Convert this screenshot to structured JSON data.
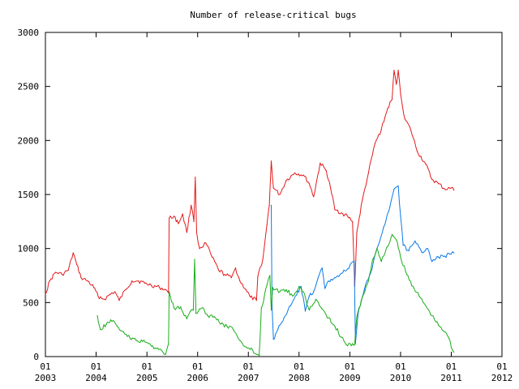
{
  "chart_data": {
    "type": "line",
    "title": "Number of release-critical bugs",
    "xlabel": "",
    "ylabel": "",
    "ylim": [
      0,
      3000
    ],
    "xlim": [
      "2003-01-01",
      "2012-01-01"
    ],
    "grid": false,
    "legend": "none",
    "y_ticks": [
      "0",
      "500",
      "1000",
      "1500",
      "2000",
      "2500",
      "3000"
    ],
    "x_ticks": [
      {
        "month": "01",
        "year": "2003",
        "date": "2003-01-01"
      },
      {
        "month": "01",
        "year": "2004",
        "date": "2004-01-01"
      },
      {
        "month": "01",
        "year": "2005",
        "date": "2005-01-01"
      },
      {
        "month": "01",
        "year": "2006",
        "date": "2006-01-01"
      },
      {
        "month": "01",
        "year": "2007",
        "date": "2007-01-01"
      },
      {
        "month": "01",
        "year": "2008",
        "date": "2008-01-01"
      },
      {
        "month": "01",
        "year": "2009",
        "date": "2009-01-01"
      },
      {
        "month": "01",
        "year": "2010",
        "date": "2010-01-01"
      },
      {
        "month": "01",
        "year": "2011",
        "date": "2011-01-01"
      },
      {
        "month": "01",
        "year": "2012",
        "date": "2012-01-01"
      }
    ],
    "series": [
      {
        "color": "#e41a1c",
        "points": [
          [
            "2003-01-01",
            580
          ],
          [
            "2003-02-01",
            700
          ],
          [
            "2003-03-15",
            780
          ],
          [
            "2003-05-01",
            760
          ],
          [
            "2003-06-15",
            800
          ],
          [
            "2003-07-20",
            960
          ],
          [
            "2003-08-15",
            850
          ],
          [
            "2003-09-15",
            730
          ],
          [
            "2003-11-01",
            700
          ],
          [
            "2003-12-15",
            640
          ],
          [
            "2004-01-15",
            560
          ],
          [
            "2004-03-01",
            530
          ],
          [
            "2004-04-15",
            580
          ],
          [
            "2004-05-15",
            600
          ],
          [
            "2004-06-15",
            520
          ],
          [
            "2004-08-01",
            620
          ],
          [
            "2004-09-15",
            700
          ],
          [
            "2004-11-01",
            700
          ],
          [
            "2004-12-15",
            680
          ],
          [
            "2005-02-01",
            660
          ],
          [
            "2005-04-01",
            640
          ],
          [
            "2005-05-15",
            620
          ],
          [
            "2005-06-05",
            590
          ],
          [
            "2005-06-10",
            1280
          ],
          [
            "2005-07-15",
            1300
          ],
          [
            "2005-08-15",
            1230
          ],
          [
            "2005-09-15",
            1320
          ],
          [
            "2005-10-15",
            1150
          ],
          [
            "2005-11-15",
            1400
          ],
          [
            "2005-12-05",
            1250
          ],
          [
            "2005-12-15",
            1660
          ],
          [
            "2005-12-25",
            1150
          ],
          [
            "2006-01-15",
            1000
          ],
          [
            "2006-03-01",
            1050
          ],
          [
            "2006-04-15",
            920
          ],
          [
            "2006-06-01",
            800
          ],
          [
            "2006-07-15",
            760
          ],
          [
            "2006-09-01",
            730
          ],
          [
            "2006-10-01",
            820
          ],
          [
            "2006-11-01",
            700
          ],
          [
            "2006-12-15",
            620
          ],
          [
            "2007-01-15",
            550
          ],
          [
            "2007-03-01",
            520
          ],
          [
            "2007-03-10",
            740
          ],
          [
            "2007-04-15",
            900
          ],
          [
            "2007-05-15",
            1220
          ],
          [
            "2007-06-01",
            1400
          ],
          [
            "2007-06-15",
            1810
          ],
          [
            "2007-07-01",
            1560
          ],
          [
            "2007-08-15",
            1500
          ],
          [
            "2007-10-01",
            1630
          ],
          [
            "2007-12-01",
            1700
          ],
          [
            "2008-02-01",
            1680
          ],
          [
            "2008-03-15",
            1600
          ],
          [
            "2008-04-15",
            1480
          ],
          [
            "2008-06-01",
            1790
          ],
          [
            "2008-07-15",
            1720
          ],
          [
            "2008-08-15",
            1560
          ],
          [
            "2008-09-15",
            1360
          ],
          [
            "2008-11-01",
            1330
          ],
          [
            "2008-12-15",
            1300
          ],
          [
            "2009-01-20",
            1250
          ],
          [
            "2009-02-05",
            650
          ],
          [
            "2009-02-20",
            1150
          ],
          [
            "2009-04-01",
            1450
          ],
          [
            "2009-05-15",
            1700
          ],
          [
            "2009-07-01",
            1970
          ],
          [
            "2009-08-15",
            2100
          ],
          [
            "2009-10-01",
            2300
          ],
          [
            "2009-11-01",
            2380
          ],
          [
            "2009-11-15",
            2650
          ],
          [
            "2009-12-01",
            2520
          ],
          [
            "2009-12-15",
            2650
          ],
          [
            "2010-01-01",
            2430
          ],
          [
            "2010-02-01",
            2200
          ],
          [
            "2010-03-15",
            2100
          ],
          [
            "2010-05-01",
            1900
          ],
          [
            "2010-07-01",
            1780
          ],
          [
            "2010-08-15",
            1640
          ],
          [
            "2010-10-01",
            1600
          ],
          [
            "2010-11-15",
            1550
          ],
          [
            "2011-01-01",
            1560
          ],
          [
            "2011-01-20",
            1540
          ]
        ]
      },
      {
        "color": "#0a7ae6",
        "points": [
          [
            "2007-06-15",
            1400
          ],
          [
            "2007-06-20",
            480
          ],
          [
            "2007-07-01",
            160
          ],
          [
            "2007-08-01",
            250
          ],
          [
            "2007-09-15",
            360
          ],
          [
            "2007-11-01",
            470
          ],
          [
            "2007-12-15",
            570
          ],
          [
            "2008-01-15",
            650
          ],
          [
            "2008-02-15",
            420
          ],
          [
            "2008-03-15",
            560
          ],
          [
            "2008-04-15",
            600
          ],
          [
            "2008-05-15",
            720
          ],
          [
            "2008-06-15",
            820
          ],
          [
            "2008-07-05",
            630
          ],
          [
            "2008-08-01",
            700
          ],
          [
            "2008-09-15",
            730
          ],
          [
            "2008-11-01",
            770
          ],
          [
            "2008-12-15",
            810
          ],
          [
            "2009-02-01",
            880
          ],
          [
            "2009-02-10",
            120
          ],
          [
            "2009-03-01",
            400
          ],
          [
            "2009-04-15",
            620
          ],
          [
            "2009-06-01",
            780
          ],
          [
            "2009-07-15",
            1000
          ],
          [
            "2009-09-01",
            1200
          ],
          [
            "2009-10-15",
            1380
          ],
          [
            "2009-11-15",
            1550
          ],
          [
            "2009-12-15",
            1580
          ],
          [
            "2010-01-01",
            1300
          ],
          [
            "2010-01-20",
            1030
          ],
          [
            "2010-03-01",
            980
          ],
          [
            "2010-04-15",
            1070
          ],
          [
            "2010-06-01",
            970
          ],
          [
            "2010-07-15",
            1000
          ],
          [
            "2010-08-15",
            880
          ],
          [
            "2010-10-01",
            920
          ],
          [
            "2010-11-15",
            930
          ],
          [
            "2011-01-01",
            950
          ],
          [
            "2011-01-20",
            960
          ]
        ]
      },
      {
        "color": "#1aad1a",
        "points": [
          [
            "2004-01-10",
            380
          ],
          [
            "2004-02-01",
            250
          ],
          [
            "2004-03-15",
            300
          ],
          [
            "2004-04-15",
            340
          ],
          [
            "2004-06-01",
            280
          ],
          [
            "2004-07-15",
            230
          ],
          [
            "2004-09-01",
            170
          ],
          [
            "2004-10-15",
            150
          ],
          [
            "2004-12-01",
            140
          ],
          [
            "2005-01-15",
            120
          ],
          [
            "2005-03-01",
            80
          ],
          [
            "2005-04-15",
            60
          ],
          [
            "2005-05-15",
            20
          ],
          [
            "2005-06-05",
            120
          ],
          [
            "2005-06-10",
            600
          ],
          [
            "2005-07-15",
            450
          ],
          [
            "2005-09-01",
            460
          ],
          [
            "2005-10-15",
            350
          ],
          [
            "2005-11-15",
            430
          ],
          [
            "2005-12-01",
            430
          ],
          [
            "2005-12-10",
            900
          ],
          [
            "2005-12-20",
            400
          ],
          [
            "2006-02-01",
            450
          ],
          [
            "2006-03-15",
            380
          ],
          [
            "2006-05-01",
            370
          ],
          [
            "2006-06-15",
            300
          ],
          [
            "2006-08-01",
            280
          ],
          [
            "2006-09-15",
            250
          ],
          [
            "2006-11-01",
            150
          ],
          [
            "2006-12-15",
            90
          ],
          [
            "2007-02-01",
            60
          ],
          [
            "2007-03-01",
            20
          ],
          [
            "2007-03-20",
            10
          ],
          [
            "2007-04-05",
            450
          ],
          [
            "2007-05-15",
            660
          ],
          [
            "2007-06-05",
            750
          ],
          [
            "2007-06-15",
            430
          ],
          [
            "2007-06-25",
            640
          ],
          [
            "2007-08-15",
            600
          ],
          [
            "2007-10-01",
            620
          ],
          [
            "2007-11-15",
            560
          ],
          [
            "2008-01-01",
            650
          ],
          [
            "2008-02-01",
            600
          ],
          [
            "2008-03-15",
            430
          ],
          [
            "2008-05-01",
            530
          ],
          [
            "2008-06-15",
            440
          ],
          [
            "2008-08-01",
            360
          ],
          [
            "2008-09-15",
            280
          ],
          [
            "2008-11-01",
            180
          ],
          [
            "2008-12-15",
            100
          ],
          [
            "2009-01-20",
            120
          ],
          [
            "2009-02-05",
            110
          ],
          [
            "2009-02-20",
            370
          ],
          [
            "2009-04-01",
            550
          ],
          [
            "2009-05-15",
            700
          ],
          [
            "2009-06-15",
            900
          ],
          [
            "2009-07-15",
            1000
          ],
          [
            "2009-08-15",
            880
          ],
          [
            "2009-10-01",
            1020
          ],
          [
            "2009-11-01",
            1130
          ],
          [
            "2009-12-01",
            1080
          ],
          [
            "2010-01-01",
            920
          ],
          [
            "2010-02-15",
            760
          ],
          [
            "2010-04-01",
            650
          ],
          [
            "2010-05-15",
            560
          ],
          [
            "2010-07-01",
            470
          ],
          [
            "2010-08-15",
            380
          ],
          [
            "2010-10-01",
            290
          ],
          [
            "2010-11-15",
            230
          ],
          [
            "2010-12-15",
            170
          ],
          [
            "2011-01-10",
            60
          ],
          [
            "2011-01-20",
            40
          ]
        ]
      }
    ]
  }
}
